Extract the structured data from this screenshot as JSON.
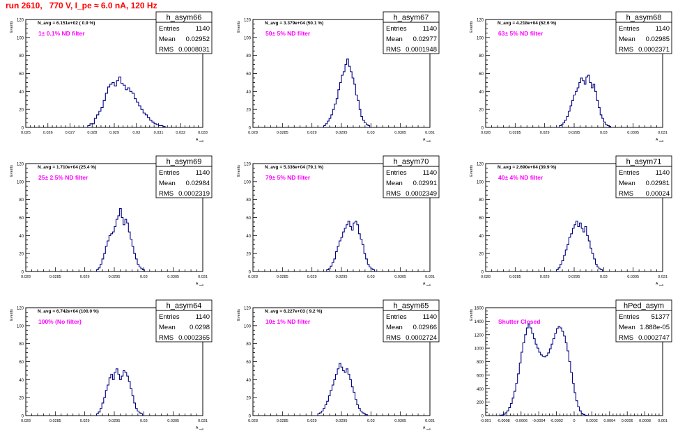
{
  "run_title": "run 2610,   770 V, I_pe ≈ 6.0 nA, 120 Hz",
  "colors": {
    "title": "#ff0000",
    "annotation": "#ff00ff",
    "histogram": "#000080",
    "axis": "#000000"
  },
  "chart_data": [
    {
      "type": "histogram",
      "name": "h_asym66",
      "title": "N_avg = 6.151e+02 ( 0.9 %)",
      "annotation": "1± 0.1% ND filter",
      "stats": {
        "Entries": "1140",
        "Mean": "0.02952",
        "RMS": "0.0008031"
      },
      "xlabel": "A_uuD",
      "ylabel": "Events",
      "xlim": [
        0.025,
        0.033
      ],
      "ylim": [
        0,
        120
      ],
      "xticks": [
        0.025,
        0.026,
        0.027,
        0.028,
        0.029,
        0.03,
        0.031,
        0.032,
        0.033
      ],
      "xtick_labels": [
        "0.025",
        "0.026",
        "0.027",
        "0.028",
        "0.029",
        "0.03",
        "0.031",
        "0.032",
        "0.033"
      ],
      "yticks": [
        0,
        20,
        40,
        60,
        80,
        100,
        120
      ],
      "bin_start": 0.0278,
      "bin_width": 0.0001,
      "counts": [
        2,
        4,
        4,
        10,
        14,
        18,
        22,
        30,
        38,
        45,
        48,
        50,
        46,
        52,
        56,
        49,
        47,
        42,
        44,
        40,
        38,
        32,
        28,
        24,
        20,
        16,
        14,
        11,
        8,
        6,
        4,
        3,
        2,
        2,
        1
      ]
    },
    {
      "type": "histogram",
      "name": "h_asym67",
      "title": "N_avg = 3.379e+04 (50.1 %)",
      "annotation": "50± 5% ND filter",
      "stats": {
        "Entries": "1140",
        "Mean": "0.02977",
        "RMS": "0.0001948"
      },
      "xlabel": "A_uuD",
      "ylabel": "Events",
      "xlim": [
        0.028,
        0.031
      ],
      "ylim": [
        0,
        120
      ],
      "xticks": [
        0.028,
        0.0285,
        0.029,
        0.0295,
        0.03,
        0.0305,
        0.031
      ],
      "xtick_labels": [
        "0.028",
        "0.0285",
        "0.029",
        "0.0295",
        "0.03",
        "0.0305",
        "0.031"
      ],
      "yticks": [
        0,
        20,
        40,
        60,
        80,
        100,
        120
      ],
      "bin_start": 0.0292,
      "bin_width": 3e-05,
      "counts": [
        2,
        4,
        7,
        10,
        14,
        20,
        26,
        32,
        42,
        50,
        58,
        62,
        70,
        76,
        68,
        62,
        55,
        48,
        36,
        30,
        20,
        12,
        8,
        5,
        3,
        2
      ]
    },
    {
      "type": "histogram",
      "name": "h_asym68",
      "title": "N_avg = 4.218e+04 (62.6 %)",
      "annotation": "63± 5% ND filter",
      "stats": {
        "Entries": "1140",
        "Mean": "0.02985",
        "RMS": "0.0002371"
      },
      "xlabel": "A_uuD",
      "ylabel": "Events",
      "xlim": [
        0.028,
        0.031
      ],
      "ylim": [
        0,
        120
      ],
      "xticks": [
        0.028,
        0.0285,
        0.029,
        0.0295,
        0.03,
        0.0305,
        0.031
      ],
      "xtick_labels": [
        "0.028",
        "0.0285",
        "0.029",
        "0.0295",
        "0.03",
        "0.0305",
        "0.031"
      ],
      "yticks": [
        0,
        20,
        40,
        60,
        80,
        100,
        120
      ],
      "bin_start": 0.02925,
      "bin_width": 3e-05,
      "counts": [
        2,
        3,
        5,
        8,
        12,
        18,
        24,
        30,
        36,
        40,
        44,
        50,
        55,
        52,
        48,
        56,
        58,
        50,
        44,
        48,
        40,
        30,
        22,
        14,
        10,
        6,
        3,
        2,
        1
      ]
    },
    {
      "type": "histogram",
      "name": "h_asym69",
      "title": "N_avg = 1.710e+04 (25.4 %)",
      "annotation": "25± 2.5% ND filter",
      "stats": {
        "Entries": "1140",
        "Mean": "0.02984",
        "RMS": "0.0002319"
      },
      "xlabel": "A_uuD",
      "ylabel": "Events",
      "xlim": [
        0.028,
        0.031
      ],
      "ylim": [
        0,
        120
      ],
      "xticks": [
        0.028,
        0.0285,
        0.029,
        0.0295,
        0.03,
        0.0305,
        0.031
      ],
      "xtick_labels": [
        "0.028",
        "0.0285",
        "0.029",
        "0.0295",
        "0.03",
        "0.0305",
        "0.031"
      ],
      "yticks": [
        0,
        20,
        40,
        60,
        80,
        100,
        120
      ],
      "bin_start": 0.0292,
      "bin_width": 3e-05,
      "counts": [
        2,
        4,
        8,
        14,
        20,
        28,
        34,
        40,
        42,
        44,
        50,
        58,
        62,
        70,
        60,
        52,
        58,
        54,
        44,
        36,
        28,
        20,
        14,
        8,
        5,
        3,
        2
      ]
    },
    {
      "type": "histogram",
      "name": "h_asym70",
      "title": "N_avg = 5.336e+04 (79.1 %)",
      "annotation": "79± 5% ND filter",
      "stats": {
        "Entries": "1140",
        "Mean": "0.02991",
        "RMS": "0.0002349"
      },
      "xlabel": "A_uuD",
      "ylabel": "Events",
      "xlim": [
        0.028,
        0.031
      ],
      "ylim": [
        0,
        120
      ],
      "xticks": [
        0.028,
        0.0285,
        0.029,
        0.0295,
        0.03,
        0.0305,
        0.031
      ],
      "xtick_labels": [
        "0.028",
        "0.0285",
        "0.029",
        "0.0295",
        "0.03",
        "0.0305",
        "0.031"
      ],
      "yticks": [
        0,
        20,
        40,
        60,
        80,
        100,
        120
      ],
      "bin_start": 0.02925,
      "bin_width": 3e-05,
      "counts": [
        2,
        3,
        6,
        10,
        14,
        22,
        28,
        34,
        38,
        44,
        48,
        52,
        56,
        50,
        46,
        54,
        56,
        52,
        42,
        36,
        30,
        20,
        14,
        8,
        5,
        3,
        2
      ]
    },
    {
      "type": "histogram",
      "name": "h_asym71",
      "title": "N_avg = 2.690e+04 (39.9 %)",
      "annotation": "40± 4% ND filter",
      "stats": {
        "Entries": "1140",
        "Mean": "0.02981",
        "RMS": "0.00024"
      },
      "xlabel": "A_uuD",
      "ylabel": "Events",
      "xlim": [
        0.028,
        0.031
      ],
      "ylim": [
        0,
        120
      ],
      "xticks": [
        0.028,
        0.0285,
        0.029,
        0.0295,
        0.03,
        0.0305,
        0.031
      ],
      "xtick_labels": [
        "0.028",
        "0.0285",
        "0.029",
        "0.0295",
        "0.03",
        "0.0305",
        "0.031"
      ],
      "yticks": [
        0,
        20,
        40,
        60,
        80,
        100,
        120
      ],
      "bin_start": 0.0292,
      "bin_width": 3e-05,
      "counts": [
        2,
        4,
        8,
        12,
        18,
        24,
        30,
        38,
        42,
        48,
        52,
        56,
        50,
        54,
        48,
        44,
        50,
        40,
        34,
        26,
        20,
        14,
        8,
        5,
        3,
        2
      ]
    },
    {
      "type": "histogram",
      "name": "h_asym64",
      "title": "N_avg = 6.742e+04 (100.0 %)",
      "annotation": "100% (No filter)",
      "stats": {
        "Entries": "1140",
        "Mean": "0.0298",
        "RMS": "0.0002365"
      },
      "xlabel": "A_uuD",
      "ylabel": "Events",
      "xlim": [
        0.028,
        0.031
      ],
      "ylim": [
        0,
        120
      ],
      "xticks": [
        0.028,
        0.0285,
        0.029,
        0.0295,
        0.03,
        0.0305,
        0.031
      ],
      "xtick_labels": [
        "0.028",
        "0.0285",
        "0.029",
        "0.0295",
        "0.03",
        "0.0305",
        "0.031"
      ],
      "yticks": [
        0,
        20,
        40,
        60,
        80,
        100,
        120
      ],
      "bin_start": 0.0292,
      "bin_width": 3e-05,
      "counts": [
        2,
        4,
        8,
        14,
        20,
        28,
        34,
        42,
        46,
        40,
        48,
        52,
        46,
        40,
        44,
        50,
        48,
        44,
        38,
        30,
        22,
        14,
        8,
        5,
        3,
        2
      ]
    },
    {
      "type": "histogram",
      "name": "h_asym65",
      "title": "N_avg = 6.227e+03 ( 9.2 %)",
      "annotation": "10± 1% ND filter",
      "stats": {
        "Entries": "1140",
        "Mean": "0.02966",
        "RMS": "0.0002724"
      },
      "xlabel": "A_uuD",
      "ylabel": "Events",
      "xlim": [
        0.028,
        0.031
      ],
      "ylim": [
        0,
        120
      ],
      "xticks": [
        0.028,
        0.0285,
        0.029,
        0.0295,
        0.03,
        0.0305,
        0.031
      ],
      "xtick_labels": [
        "0.028",
        "0.0285",
        "0.029",
        "0.0295",
        "0.03",
        "0.0305",
        "0.031"
      ],
      "yticks": [
        0,
        20,
        40,
        60,
        80,
        100,
        120
      ],
      "bin_start": 0.0291,
      "bin_width": 3e-05,
      "counts": [
        2,
        3,
        5,
        8,
        12,
        16,
        22,
        28,
        34,
        40,
        46,
        52,
        58,
        54,
        50,
        48,
        52,
        46,
        40,
        32,
        26,
        18,
        12,
        8,
        5,
        3,
        2,
        1
      ]
    },
    {
      "type": "histogram",
      "name": "hPed_asym",
      "title": "",
      "annotation": "Shutter Closed",
      "stats": {
        "Entries": "51377",
        "Mean": "1.888e-05",
        "RMS": "0.0002747"
      },
      "xlabel": "",
      "ylabel": "Events",
      "xlim": [
        -0.001,
        0.001
      ],
      "ylim": [
        0,
        1600
      ],
      "xticks": [
        -0.001,
        -0.0008,
        -0.0006,
        -0.0004,
        -0.0002,
        0,
        0.0002,
        0.0004,
        0.0006,
        0.0008,
        0.001
      ],
      "xtick_labels": [
        "-0.001",
        "-0.0008",
        "-0.0006",
        "-0.0004",
        "-0.0002",
        "0",
        "0.0002",
        "0.0004",
        "0.0006",
        "0.0008",
        "0.001"
      ],
      "yticks": [
        0,
        200,
        400,
        600,
        800,
        1000,
        1200,
        1400,
        1600
      ],
      "bin_start": -0.00084,
      "bin_width": 2e-05,
      "counts": [
        5,
        10,
        20,
        40,
        70,
        120,
        180,
        260,
        360,
        480,
        620,
        780,
        940,
        1080,
        1200,
        1300,
        1360,
        1300,
        1220,
        1140,
        1060,
        1000,
        940,
        900,
        880,
        870,
        890,
        930,
        990,
        1060,
        1140,
        1220,
        1290,
        1320,
        1300,
        1250,
        1180,
        1080,
        960,
        800,
        640,
        480,
        340,
        220,
        130,
        70,
        35,
        15,
        6,
        2
      ]
    }
  ]
}
